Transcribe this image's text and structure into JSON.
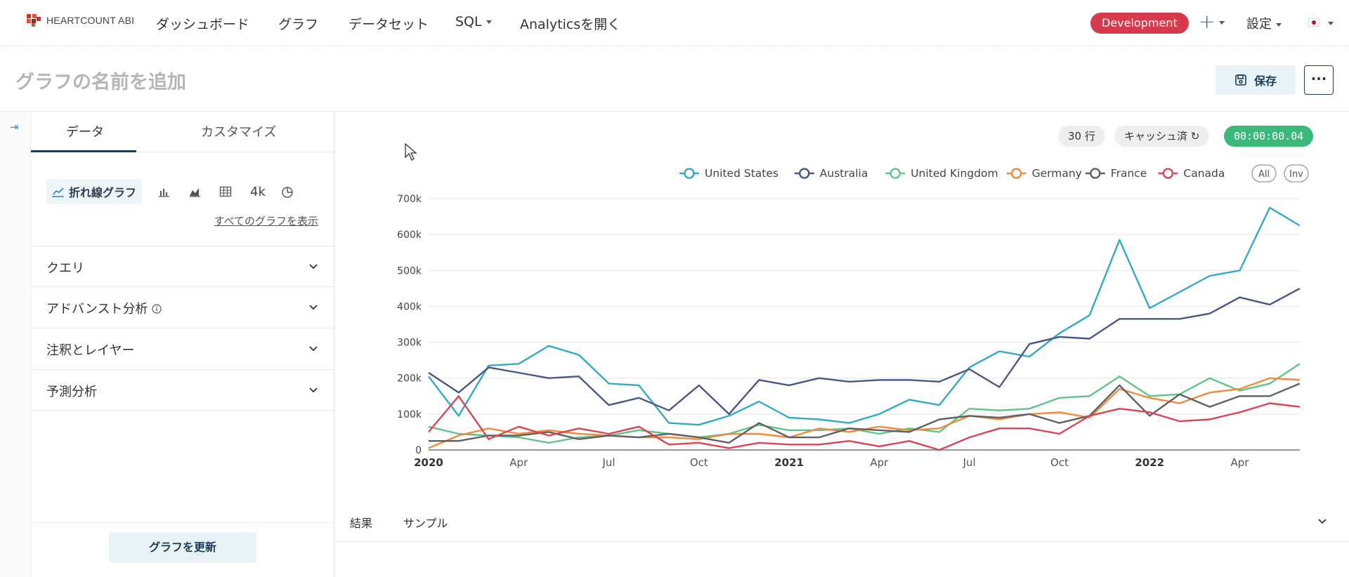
{
  "nav": {
    "logo_text": "HEARTCOUNT ABI",
    "items": [
      "ダッシュボード",
      "グラフ",
      "データセット",
      "SQL",
      "Analyticsを開く"
    ],
    "environment": "Development",
    "add_label": "+",
    "settings": "設定"
  },
  "title_bar": {
    "chart_name_placeholder": "グラフの名前を追加",
    "save_label": "保存",
    "more_label": "···"
  },
  "left_panel": {
    "tabs": [
      "データ",
      "カスタマイズ"
    ],
    "active_chart_type": "折れ線グラフ",
    "k_label": "4k",
    "show_all_charts": "すべてのグラフを表示",
    "sections": [
      "クエリ",
      "アドバンスト分析",
      "注釈とレイヤー",
      "予測分析"
    ],
    "update_button": "グラフを更新"
  },
  "chart_panel": {
    "rows_chip": "30 行",
    "cache_chip": "キャッシュ済",
    "timer": "00:00:00.04",
    "legend_all": "All",
    "legend_inv": "Inv",
    "result_tabs": [
      "結果",
      "サンプル"
    ]
  },
  "chart_data": {
    "type": "line",
    "title": "",
    "x": [
      "2020-01",
      "2020-02",
      "2020-03",
      "2020-04",
      "2020-05",
      "2020-06",
      "2020-07",
      "2020-08",
      "2020-09",
      "2020-10",
      "2020-11",
      "2020-12",
      "2021-01",
      "2021-02",
      "2021-03",
      "2021-04",
      "2021-05",
      "2021-06",
      "2021-07",
      "2021-08",
      "2021-09",
      "2021-10",
      "2021-11",
      "2021-12",
      "2022-01",
      "2022-02",
      "2022-03",
      "2022-04",
      "2022-05",
      "2022-06"
    ],
    "x_tick_labels": [
      "2020",
      "Apr",
      "Jul",
      "Oct",
      "2021",
      "Apr",
      "Jul",
      "Oct",
      "2022",
      "Apr"
    ],
    "y_tick_labels": [
      "0",
      "100k",
      "200k",
      "300k",
      "400k",
      "500k",
      "600k",
      "700k"
    ],
    "ylim": [
      0,
      700000
    ],
    "series": [
      {
        "name": "United States",
        "color": "#33a9c9",
        "values": [
          205000,
          95000,
          235000,
          240000,
          290000,
          265000,
          185000,
          180000,
          75000,
          70000,
          95000,
          135000,
          90000,
          85000,
          75000,
          100000,
          140000,
          125000,
          230000,
          275000,
          260000,
          325000,
          375000,
          585000,
          395000,
          440000,
          485000,
          500000,
          675000,
          625000
        ]
      },
      {
        "name": "Australia",
        "color": "#4a5688",
        "values": [
          215000,
          160000,
          230000,
          215000,
          200000,
          205000,
          125000,
          145000,
          110000,
          180000,
          100000,
          195000,
          180000,
          200000,
          190000,
          195000,
          195000,
          190000,
          225000,
          175000,
          295000,
          315000,
          310000,
          365000,
          365000,
          365000,
          380000,
          425000,
          405000,
          450000
        ]
      },
      {
        "name": "United Kingdom",
        "color": "#5ec48a",
        "values": [
          65000,
          45000,
          40000,
          35000,
          20000,
          35000,
          40000,
          55000,
          45000,
          35000,
          45000,
          70000,
          55000,
          55000,
          60000,
          45000,
          60000,
          50000,
          115000,
          110000,
          115000,
          145000,
          150000,
          205000,
          150000,
          155000,
          200000,
          165000,
          185000,
          240000
        ]
      },
      {
        "name": "Germany",
        "color": "#f08a3c",
        "values": [
          5000,
          40000,
          60000,
          45000,
          55000,
          45000,
          40000,
          35000,
          35000,
          30000,
          45000,
          45000,
          35000,
          60000,
          50000,
          65000,
          55000,
          60000,
          95000,
          85000,
          100000,
          105000,
          90000,
          170000,
          145000,
          130000,
          160000,
          170000,
          200000,
          195000
        ]
      },
      {
        "name": "France",
        "color": "#616161",
        "values": [
          25000,
          25000,
          40000,
          40000,
          50000,
          30000,
          40000,
          35000,
          45000,
          35000,
          20000,
          75000,
          35000,
          35000,
          60000,
          55000,
          50000,
          85000,
          95000,
          90000,
          100000,
          75000,
          95000,
          180000,
          95000,
          155000,
          120000,
          150000,
          150000,
          185000
        ]
      },
      {
        "name": "Canada",
        "color": "#d94555",
        "values": [
          50000,
          150000,
          30000,
          65000,
          40000,
          60000,
          45000,
          65000,
          15000,
          20000,
          5000,
          20000,
          15000,
          15000,
          25000,
          10000,
          25000,
          0,
          35000,
          60000,
          60000,
          45000,
          95000,
          115000,
          105000,
          80000,
          85000,
          105000,
          130000,
          120000
        ]
      }
    ]
  }
}
